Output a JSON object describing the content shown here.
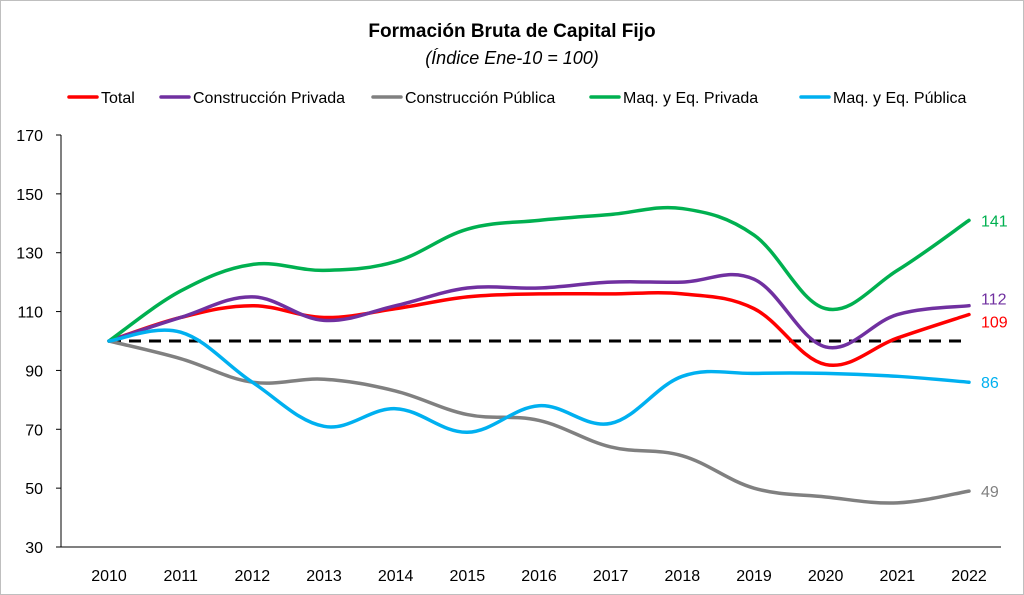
{
  "chart_data": {
    "type": "line",
    "title": "Formación Bruta de Capital Fijo",
    "subtitle": "(Índice Ene-10 = 100)",
    "xlabel": "",
    "ylabel": "",
    "x": [
      "2010",
      "2011",
      "2012",
      "2013",
      "2014",
      "2015",
      "2016",
      "2017",
      "2018",
      "2019",
      "2020",
      "2021",
      "2022"
    ],
    "ylim": [
      30,
      170
    ],
    "yticks": [
      30,
      50,
      70,
      90,
      110,
      130,
      150,
      170
    ],
    "grid": false,
    "legend_position": "top",
    "reference_line": {
      "value": 100,
      "style": "dashed",
      "color": "#000000"
    },
    "series": [
      {
        "name": "Total",
        "color": "#ff0000",
        "values": [
          100,
          108,
          112,
          108,
          111,
          115,
          116,
          116,
          116,
          111,
          92,
          101,
          109
        ],
        "end_label": "109"
      },
      {
        "name": "Construcción Privada",
        "color": "#7030a0",
        "values": [
          100,
          108,
          115,
          107,
          112,
          118,
          118,
          120,
          120,
          121,
          98,
          109,
          112
        ],
        "end_label": "112"
      },
      {
        "name": "Construcción Pública",
        "color": "#808080",
        "values": [
          100,
          94,
          86,
          87,
          83,
          75,
          73,
          64,
          61,
          50,
          47,
          45,
          49
        ],
        "end_label": "49"
      },
      {
        "name": "Maq. y Eq. Privada",
        "color": "#00b050",
        "values": [
          100,
          117,
          126,
          124,
          127,
          138,
          141,
          143,
          145,
          136,
          111,
          124,
          141
        ],
        "end_label": "141"
      },
      {
        "name": "Maq. y Eq. Pública",
        "color": "#00b0f0",
        "values": [
          100,
          103,
          86,
          71,
          77,
          69,
          78,
          72,
          88,
          89,
          89,
          88,
          86
        ],
        "end_label": "86"
      }
    ]
  }
}
